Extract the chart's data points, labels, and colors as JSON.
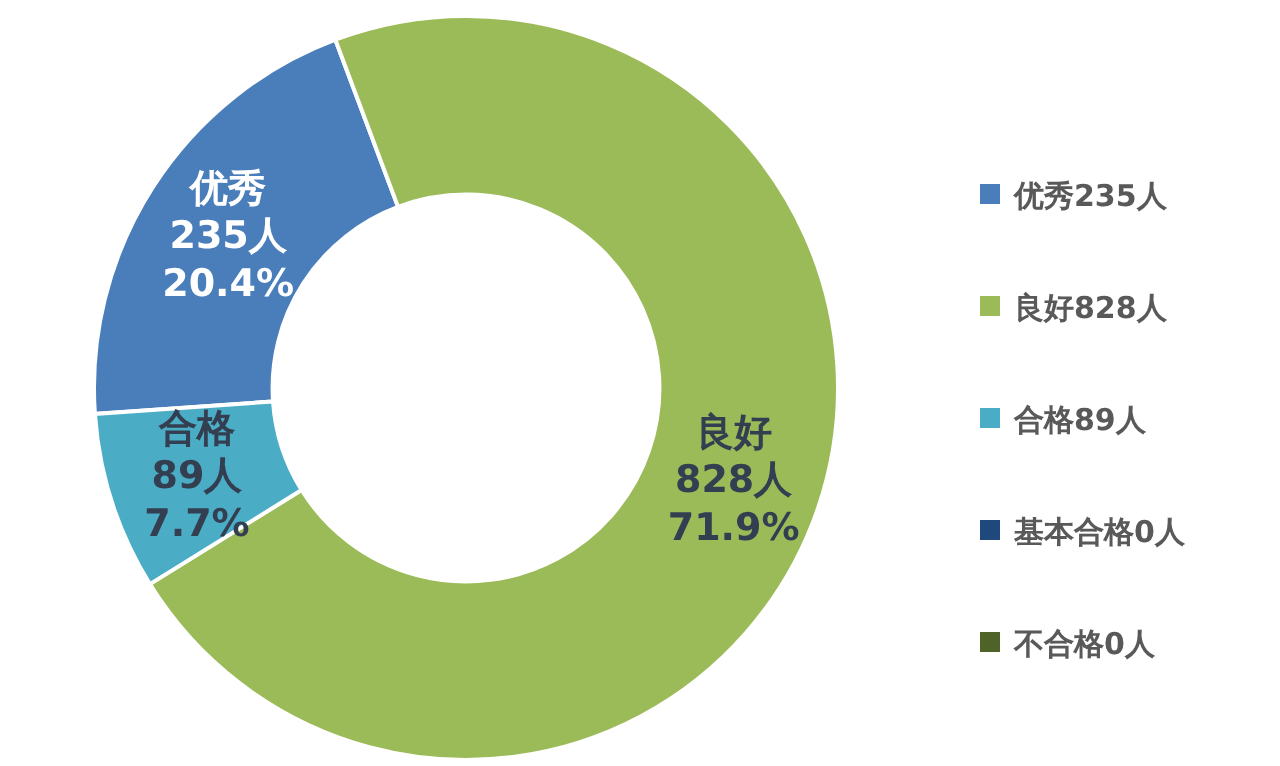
{
  "chart_data": {
    "type": "donut",
    "categories": [
      "优秀235人",
      "良好828人",
      "合格89人",
      "基本合格0人",
      "不合格0人"
    ],
    "values": [
      235,
      828,
      89,
      0,
      0
    ],
    "colors": [
      "#4a7ebb",
      "#9bbb59",
      "#4bacc6",
      "#1f497d",
      "#4f6228"
    ],
    "value_labels": [
      "优秀\n235人\n20.4%",
      "良好\n828人\n71.9%",
      "合格\n89人\n7.7%",
      null,
      null
    ],
    "legend": "right"
  }
}
